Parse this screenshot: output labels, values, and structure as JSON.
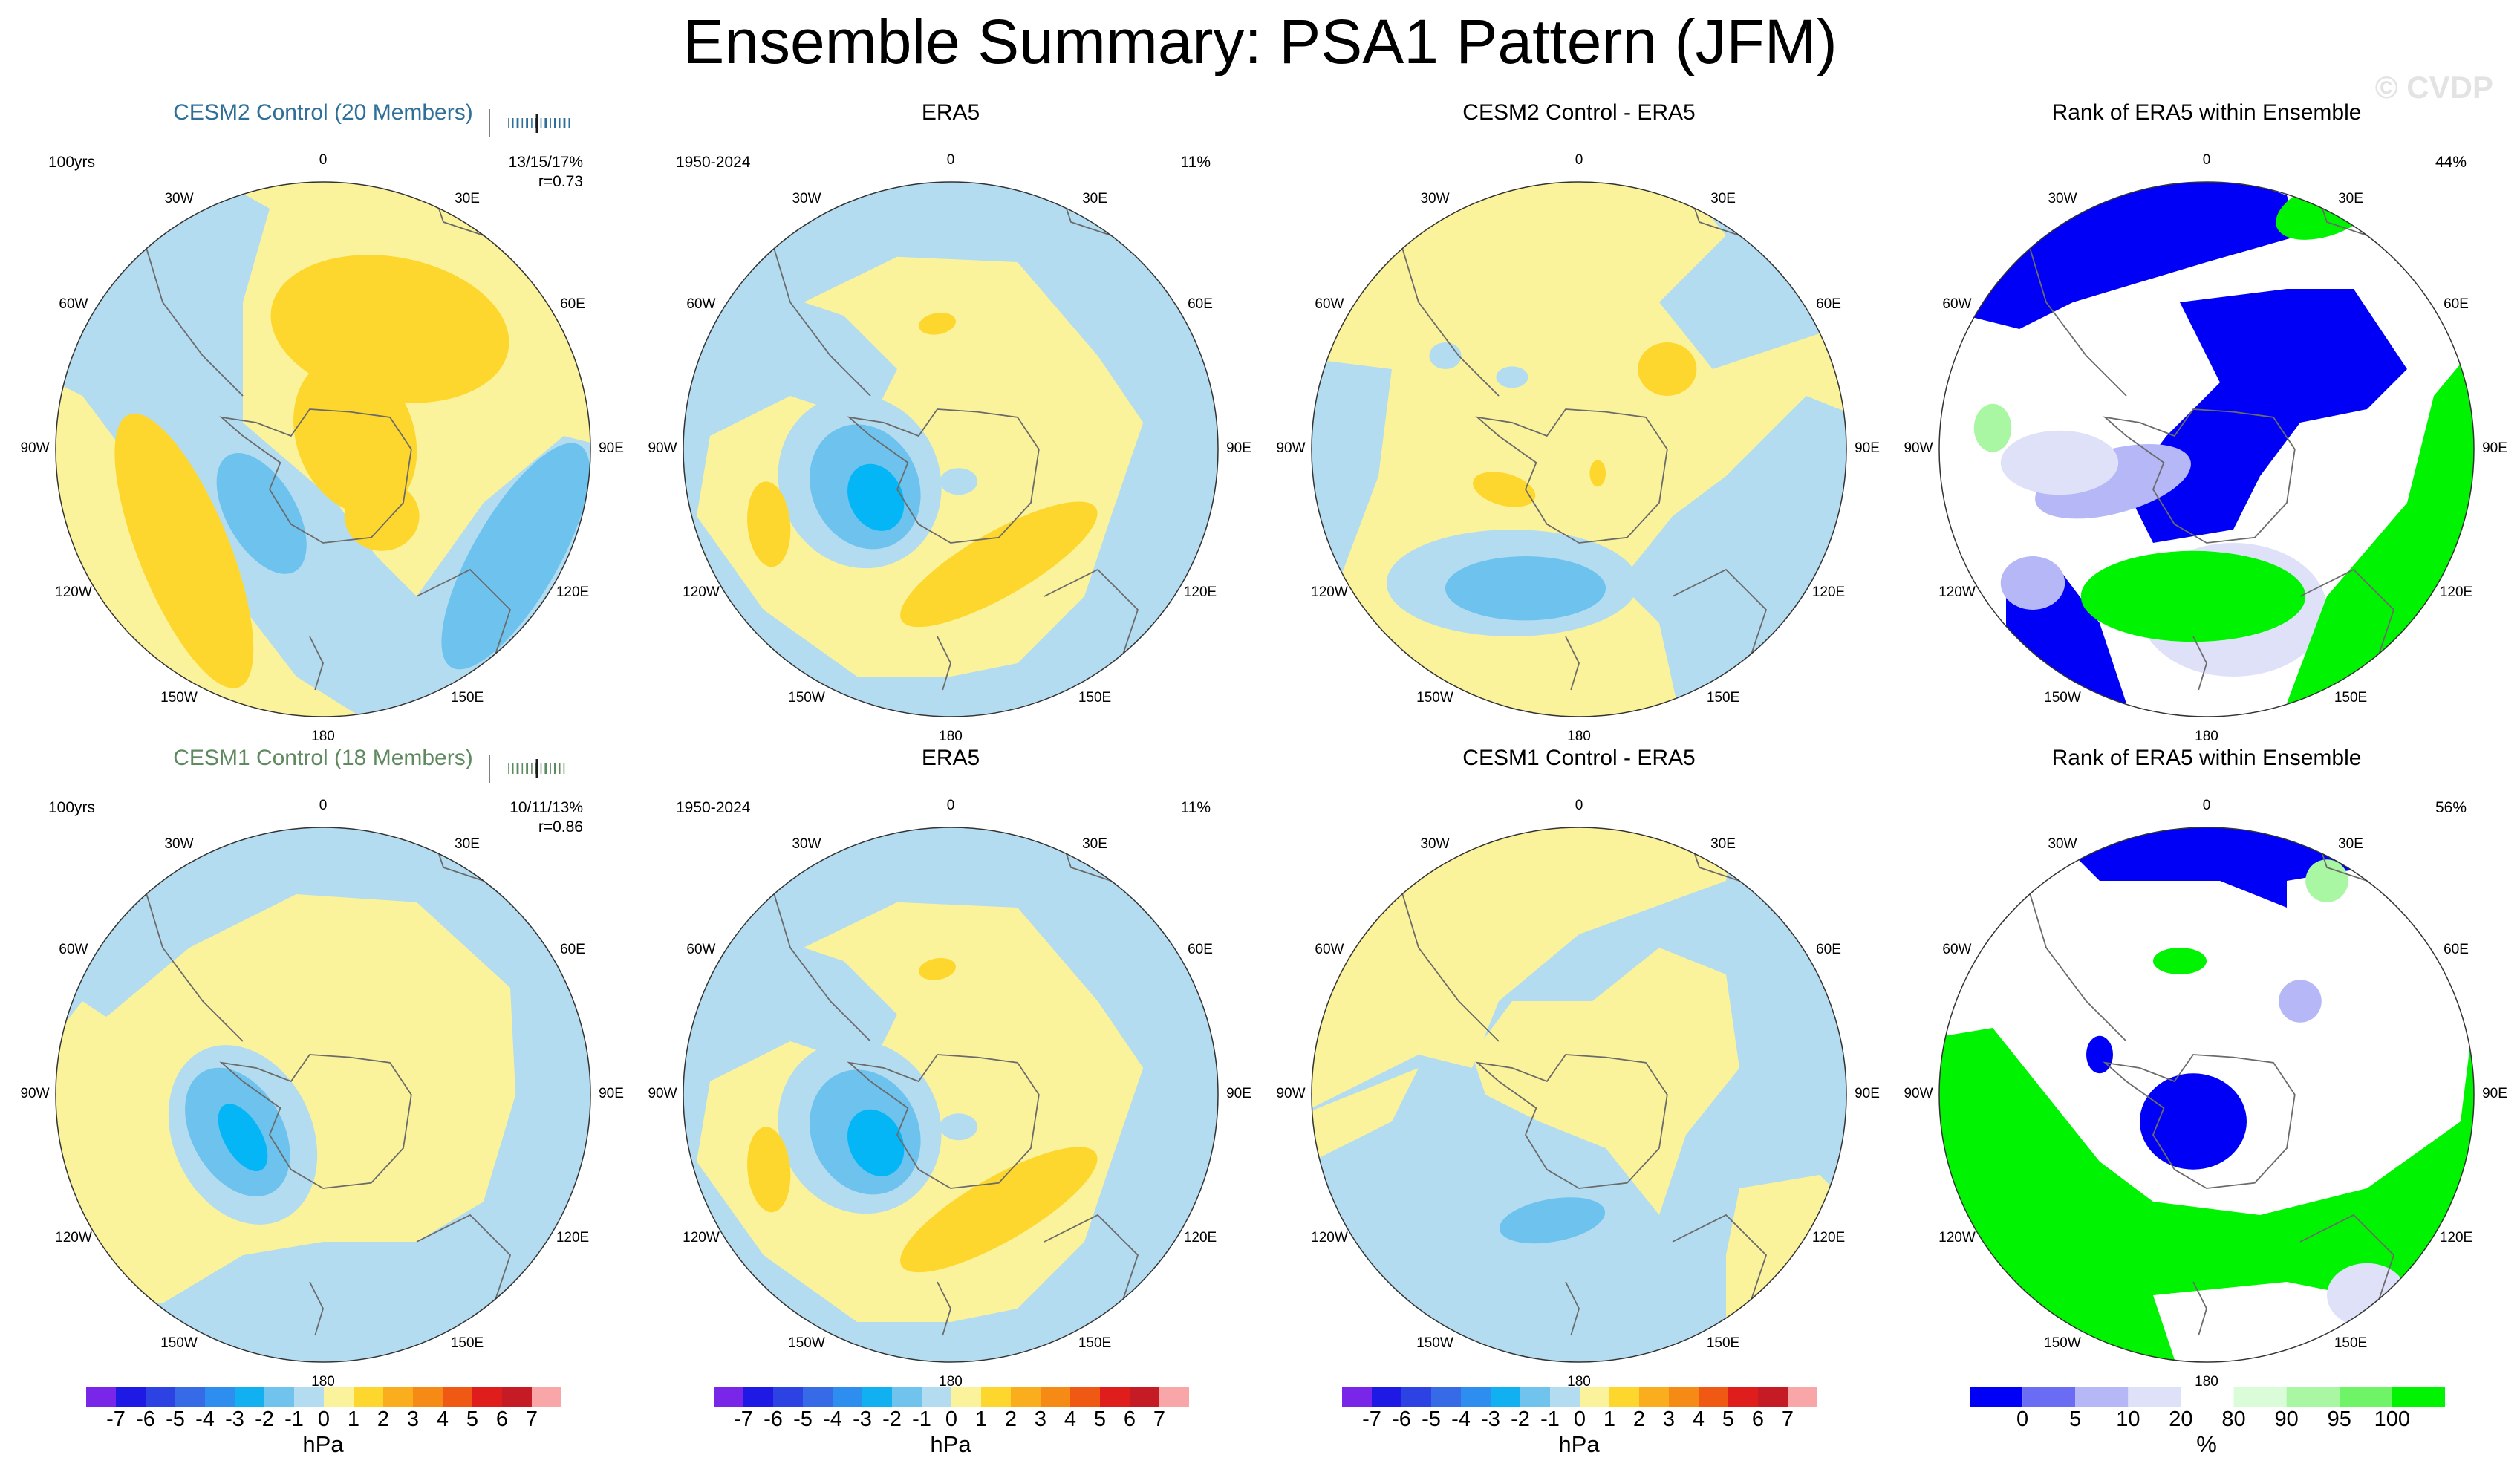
{
  "title": "Ensemble Summary: PSA1 Pattern (JFM)",
  "watermark": "© CVDP",
  "colors": {
    "ens_title_row1": "#2e6f9a",
    "ens_title_row2": "#5f8a60",
    "map_pale_blue": "#b3dcf0",
    "map_pale_yellow": "#fbf39b",
    "map_gold": "#fdd72e",
    "map_mid_blue": "#6ec2ee",
    "map_cyan": "#05b6f6",
    "rank_blue": "#0000f6",
    "rank_green": "#00f300"
  },
  "chart_data": [
    {
      "type": "heatmap",
      "projection": "south-polar-stereographic",
      "title": "CESM2 Control (20 Members)",
      "stat_line": "100yrs",
      "stat_right": "13/15/17%",
      "corr": "r=0.73",
      "pattern": "ens2",
      "members_tick_count": 20
    },
    {
      "type": "heatmap",
      "projection": "south-polar-stereographic",
      "title": "ERA5",
      "stat_line": "1950-2024",
      "stat_right": "11%",
      "pattern": "era5"
    },
    {
      "type": "heatmap",
      "projection": "south-polar-stereographic",
      "title": "CESM2 Control - ERA5",
      "pattern": "diff2"
    },
    {
      "type": "heatmap",
      "projection": "south-polar-stereographic",
      "title": "Rank of ERA5 within Ensemble",
      "stat_right": "44%",
      "pattern": "rank2"
    },
    {
      "type": "heatmap",
      "projection": "south-polar-stereographic",
      "title": "CESM1 Control (18 Members)",
      "stat_line": "100yrs",
      "stat_right": "10/11/13%",
      "corr": "r=0.86",
      "pattern": "ens1",
      "members_tick_count": 18
    },
    {
      "type": "heatmap",
      "projection": "south-polar-stereographic",
      "title": "ERA5",
      "stat_line": "1950-2024",
      "stat_right": "11%",
      "pattern": "era5"
    },
    {
      "type": "heatmap",
      "projection": "south-polar-stereographic",
      "title": "CESM1 Control - ERA5",
      "pattern": "diff1"
    },
    {
      "type": "heatmap",
      "projection": "south-polar-stereographic",
      "title": "Rank of ERA5 within Ensemble",
      "stat_right": "56%",
      "pattern": "rank1"
    }
  ],
  "longitude_labels": [
    "0",
    "30E",
    "60E",
    "90E",
    "120E",
    "150E",
    "180",
    "150W",
    "120W",
    "90W",
    "60W",
    "30W"
  ],
  "colorbars": {
    "hpa": {
      "unit": "hPa",
      "ticks": [
        "-7",
        "-6",
        "-5",
        "-4",
        "-3",
        "-2",
        "-1",
        "0",
        "1",
        "2",
        "3",
        "4",
        "5",
        "6",
        "7"
      ],
      "colors": [
        "#7a26e8",
        "#1f19e6",
        "#2d42e2",
        "#376ae6",
        "#2d8ef0",
        "#11b0f0",
        "#70c3ec",
        "#b3dcf0",
        "#fbf39b",
        "#fdd72e",
        "#fbae1d",
        "#f58a14",
        "#ef5914",
        "#e01d1d",
        "#c41b25",
        "#f8a6a8"
      ]
    },
    "pct": {
      "unit": "%",
      "ticks": [
        "0",
        "5",
        "10",
        "20",
        "80",
        "90",
        "95",
        "100"
      ],
      "colors": [
        "#0000f6",
        "#6a6cf4",
        "#b5b7f6",
        "#dfe1f8",
        "#ffffff",
        "#dafcd8",
        "#a9f7a2",
        "#6ff468",
        "#00f300"
      ]
    }
  }
}
